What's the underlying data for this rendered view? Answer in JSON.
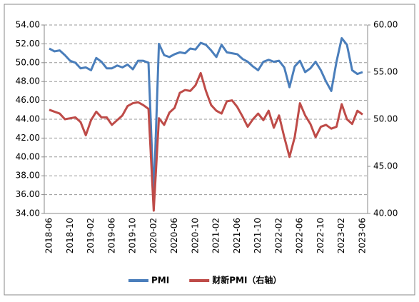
{
  "chart_data": {
    "type": "line",
    "categories": [
      "2018-06",
      null,
      null,
      null,
      "2018-10",
      null,
      null,
      null,
      "2019-02",
      null,
      null,
      null,
      "2019-06",
      null,
      null,
      null,
      "2019-10",
      null,
      null,
      null,
      "2020-02",
      null,
      null,
      null,
      "2020-06",
      null,
      null,
      null,
      "2020-10",
      null,
      null,
      null,
      "2021-02",
      null,
      null,
      null,
      "2021-06",
      null,
      null,
      null,
      "2021-10",
      null,
      null,
      null,
      "2022-02",
      null,
      null,
      null,
      "2022-06",
      null,
      null,
      null,
      "2022-10",
      null,
      null,
      null,
      "2023-02",
      null,
      null,
      null,
      "2023-06"
    ],
    "series": [
      {
        "name": "PMI",
        "color": "#4a7ebb",
        "values": [
          51.5,
          51.2,
          51.3,
          50.8,
          50.2,
          50.0,
          49.4,
          49.5,
          49.2,
          50.5,
          50.1,
          49.4,
          49.4,
          49.7,
          49.5,
          49.8,
          49.3,
          50.2,
          50.2,
          50.0,
          35.7,
          52.0,
          50.8,
          50.6,
          50.9,
          51.1,
          51.0,
          51.5,
          51.4,
          52.1,
          51.9,
          51.3,
          50.6,
          51.9,
          51.1,
          51.0,
          50.9,
          50.4,
          50.1,
          49.6,
          49.2,
          50.1,
          50.3,
          50.1,
          50.2,
          49.5,
          47.4,
          49.6,
          50.2,
          49.0,
          49.4,
          50.1,
          49.2,
          48.0,
          47.0,
          50.1,
          52.6,
          51.9,
          49.2,
          48.8,
          49.0
        ]
      },
      {
        "name": "财新PMI（右轴）",
        "color": "#be4b48",
        "axis": "y2",
        "values": [
          51.0,
          50.8,
          50.6,
          50.0,
          50.1,
          50.2,
          49.7,
          48.3,
          49.9,
          50.8,
          50.2,
          50.2,
          49.4,
          49.9,
          50.4,
          51.4,
          51.7,
          51.8,
          51.5,
          51.1,
          40.3,
          50.1,
          49.4,
          50.7,
          51.2,
          52.8,
          53.1,
          53.0,
          53.6,
          54.9,
          53.0,
          51.5,
          50.9,
          50.6,
          51.9,
          52.0,
          51.3,
          50.3,
          49.2,
          50.0,
          50.6,
          49.9,
          50.9,
          49.1,
          50.4,
          48.1,
          46.0,
          48.1,
          51.7,
          50.4,
          49.5,
          48.1,
          49.2,
          49.4,
          49.0,
          49.2,
          51.6,
          50.0,
          49.5,
          50.9,
          50.5
        ]
      }
    ],
    "ylim": [
      34,
      54
    ],
    "yticks": [
      {
        "value": 34,
        "label": "34.00"
      },
      {
        "value": 36,
        "label": "36.00"
      },
      {
        "value": 38,
        "label": "38.00"
      },
      {
        "value": 40,
        "label": "40.00"
      },
      {
        "value": 42,
        "label": "42.00"
      },
      {
        "value": 44,
        "label": "44.00"
      },
      {
        "value": 46,
        "label": "46.00"
      },
      {
        "value": 48,
        "label": "48.00"
      },
      {
        "value": 50,
        "label": "50.00"
      },
      {
        "value": 52,
        "label": "52.00"
      },
      {
        "value": 54,
        "label": "54.00"
      }
    ],
    "y2lim": [
      40,
      60
    ],
    "y2ticks": [
      {
        "value": 40,
        "label": "40.00"
      },
      {
        "value": 45,
        "label": "45.00"
      },
      {
        "value": 50,
        "label": "50.00"
      },
      {
        "value": 55,
        "label": "55.00"
      },
      {
        "value": 60,
        "label": "60.00"
      }
    ],
    "grid": true,
    "legend": "bottom"
  }
}
